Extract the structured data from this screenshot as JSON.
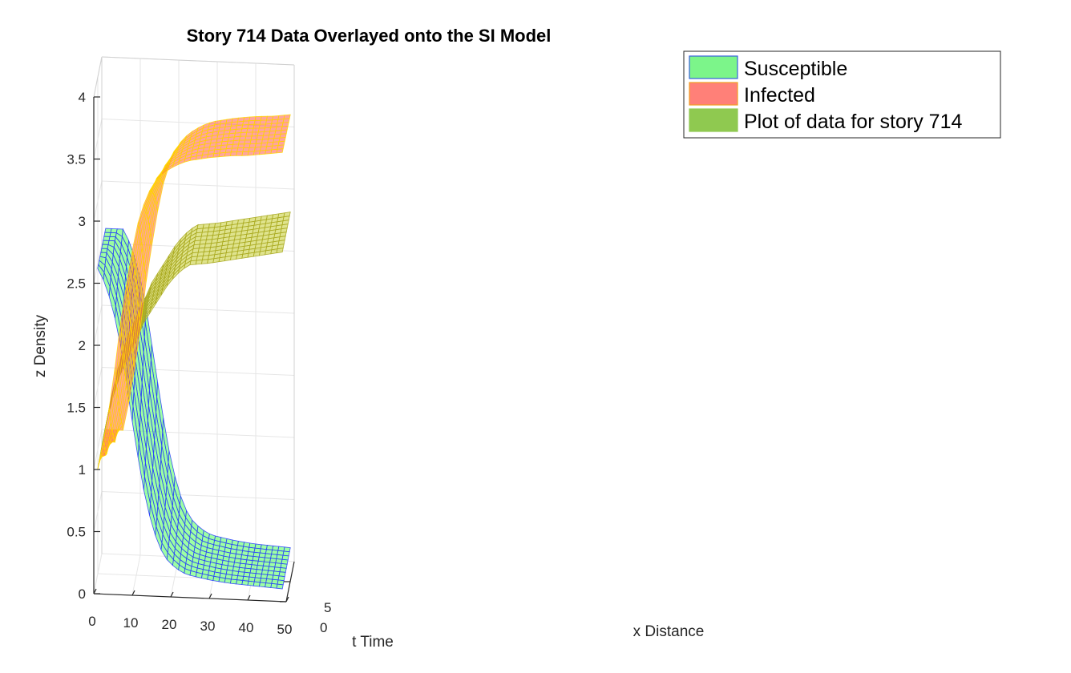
{
  "chart_data": {
    "type": "surface3d",
    "title": "Story 714 Data Overlayed onto the SI Model",
    "xlabel": "t Time",
    "ylabel": "x Distance",
    "zlabel": "z Density",
    "t_ticks": [
      0,
      10,
      20,
      30,
      40,
      50
    ],
    "x_ticks": [
      0,
      5
    ],
    "z_ticks": [
      0,
      0.5,
      1,
      1.5,
      2,
      2.5,
      3,
      3.5,
      4
    ],
    "t_lim": [
      0,
      50
    ],
    "x_lim": [
      0,
      10
    ],
    "z_lim": [
      0,
      4
    ],
    "grid": true,
    "legend_position": "top-right, outside plot",
    "legend": [
      {
        "label": "Susceptible",
        "fill": "#7cf58a",
        "edge": "#3a5fe0"
      },
      {
        "label": "Infected",
        "fill": "#ff8078",
        "edge": "#f0a020"
      },
      {
        "label": "Plot of data for story 714",
        "fill": "#8fc950",
        "edge": "#8fc950"
      }
    ],
    "series": [
      {
        "name": "Susceptible",
        "t": [
          1,
          3,
          5,
          7,
          9,
          11,
          13,
          15,
          17,
          19,
          21,
          23,
          25,
          30,
          35,
          40,
          45,
          50
        ],
        "z": [
          2.62,
          2.5,
          2.3,
          2.0,
          1.6,
          1.2,
          0.85,
          0.58,
          0.4,
          0.3,
          0.24,
          0.2,
          0.18,
          0.15,
          0.13,
          0.12,
          0.11,
          0.1
        ],
        "fill": "#4dff59",
        "edge": "#2a3cff"
      },
      {
        "name": "Infected",
        "t": [
          1,
          3,
          5,
          7,
          9,
          11,
          13,
          15,
          17,
          19,
          21,
          23,
          25,
          30,
          35,
          40,
          45,
          50
        ],
        "z": [
          1.0,
          1.3,
          1.7,
          2.2,
          2.6,
          2.95,
          3.15,
          3.3,
          3.38,
          3.43,
          3.47,
          3.5,
          3.52,
          3.55,
          3.57,
          3.58,
          3.6,
          3.62
        ],
        "fill": "#ff5a4e",
        "edge": "#ffd700"
      },
      {
        "name": "Plot of data for story 714",
        "t": [
          1,
          3,
          5,
          7,
          9,
          11,
          13,
          15,
          17,
          19,
          21,
          23,
          25,
          30,
          35,
          40,
          45,
          50
        ],
        "z": [
          1.0,
          1.35,
          1.6,
          1.78,
          1.92,
          2.05,
          2.2,
          2.3,
          2.4,
          2.5,
          2.58,
          2.64,
          2.68,
          2.7,
          2.73,
          2.76,
          2.79,
          2.82
        ],
        "fill": "#c4cc30",
        "edge": "#a8a820"
      }
    ]
  }
}
